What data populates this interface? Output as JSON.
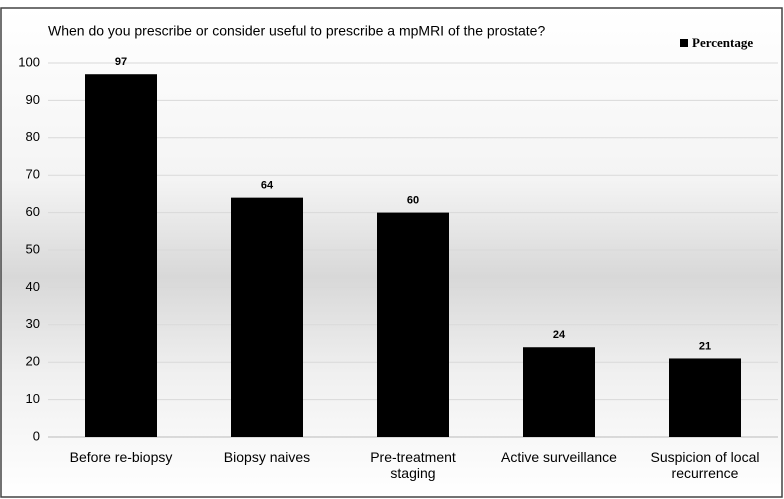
{
  "chart_data": {
    "type": "bar",
    "title": "When do you prescribe or consider useful to prescribe a mpMRI of the prostate?",
    "categories": [
      "Before re-biopsy",
      "Biopsy naives",
      "Pre-treatment staging",
      "Active surveillance",
      "Suspicion of local recurrence"
    ],
    "series": [
      {
        "name": "Percentage",
        "color": "#000000",
        "values": [
          97,
          64,
          60,
          24,
          21
        ]
      }
    ],
    "ylim": [
      0,
      100
    ],
    "yticks": [
      0,
      10,
      20,
      30,
      40,
      50,
      60,
      70,
      80,
      90,
      100
    ],
    "grid": true,
    "legend": "top-right"
  }
}
